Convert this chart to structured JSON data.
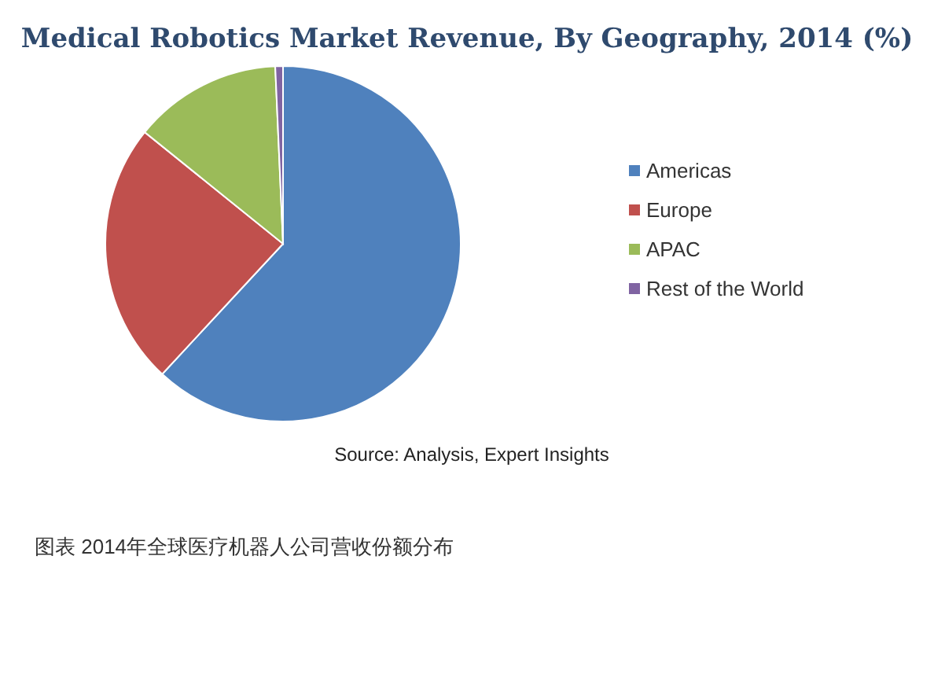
{
  "chart_data": {
    "type": "pie",
    "title": "Medical Robotics Market Revenue, By Geography, 2014 (%)",
    "categories": [
      "Americas",
      "Europe",
      "APAC",
      "Rest of the World"
    ],
    "values": [
      61.9,
      23.9,
      13.5,
      0.7
    ],
    "colors": [
      "#4f81bd",
      "#c0504d",
      "#9bbb59",
      "#8064a2"
    ],
    "legend": "right",
    "annotations": [
      "Source: Analysis, Expert Insights",
      "图表 2014年全球医疗机器人公司营收份额分布"
    ]
  }
}
